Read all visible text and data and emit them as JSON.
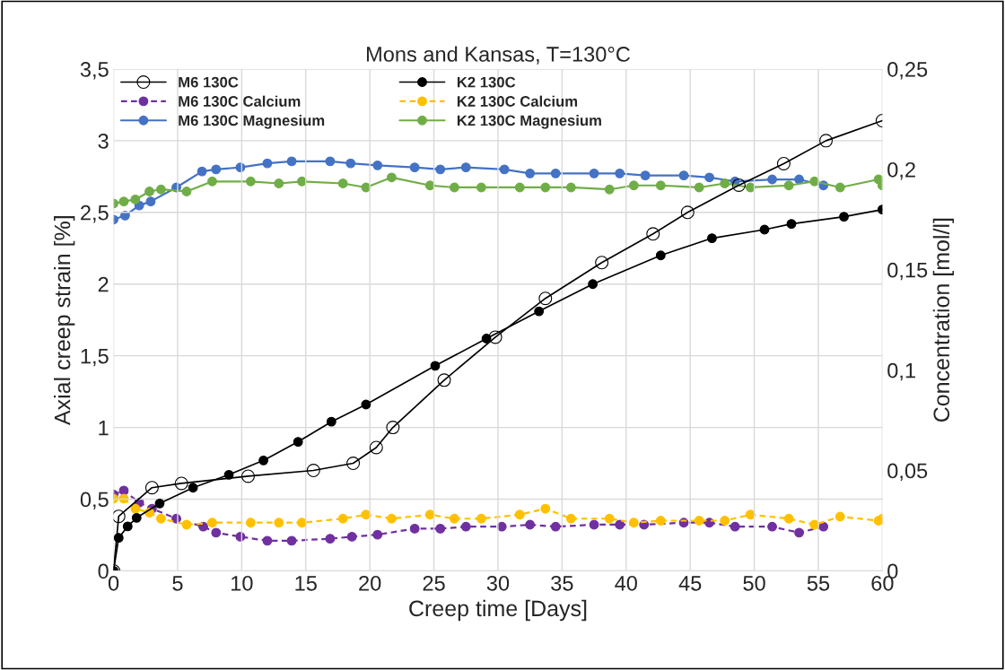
{
  "chart_data": {
    "type": "line",
    "title": "Mons and Kansas, T=130°C",
    "xlabel": "Creep time [Days]",
    "ylabel": "Axial creep strain [%]",
    "y2label": "Concentration [mol/l]",
    "xlim": [
      0,
      60
    ],
    "xticks": [
      0,
      5,
      10,
      15,
      20,
      25,
      30,
      35,
      40,
      45,
      50,
      55,
      60
    ],
    "ylim": [
      0,
      3.5
    ],
    "yticks": [
      0,
      {
        "value": 0.5,
        "label": "0,5"
      },
      1,
      {
        "value": 1.5,
        "label": "1,5"
      },
      2,
      {
        "value": 2.5,
        "label": "2,5"
      },
      3,
      {
        "value": 3.5,
        "label": "3,5"
      }
    ],
    "y2lim": [
      0,
      0.25
    ],
    "y2ticks": [
      0,
      {
        "value": 0.05,
        "label": "0,05"
      },
      {
        "value": 0.1,
        "label": "0,1"
      },
      {
        "value": 0.15,
        "label": "0,15"
      },
      {
        "value": 0.2,
        "label": "0,2"
      },
      {
        "value": 0.25,
        "label": "0,25"
      }
    ],
    "grid": true,
    "legend": "top left",
    "series": [
      {
        "name": "M6 130C",
        "color": "#000000",
        "marker": "circle-open",
        "line_style": "solid",
        "x": [
          0,
          0.4,
          3.0,
          5.3,
          10.5,
          15.6,
          18.7,
          20.5,
          21.8,
          25.8,
          29.8,
          33.7,
          38.1,
          42.1,
          44.8,
          48.8,
          52.3,
          55.6,
          60
        ],
        "values": [
          0,
          0.38,
          0.58,
          0.61,
          0.66,
          0.7,
          0.75,
          0.86,
          1.0,
          1.33,
          1.63,
          1.9,
          2.15,
          2.35,
          2.5,
          2.69,
          2.84,
          3.0,
          3.14
        ]
      },
      {
        "name": "K2 130C",
        "color": "#000000",
        "marker": "circle",
        "line_style": "solid",
        "x": [
          0,
          0.4,
          1.1,
          1.8,
          3.6,
          6.2,
          9.0,
          11.7,
          14.4,
          17.0,
          19.7,
          25.1,
          29.1,
          33.2,
          37.4,
          42.7,
          46.7,
          50.8,
          52.9,
          57.0,
          60
        ],
        "values": [
          0,
          0.23,
          0.31,
          0.37,
          0.47,
          0.58,
          0.67,
          0.77,
          0.9,
          1.04,
          1.16,
          1.43,
          1.62,
          1.81,
          2.0,
          2.2,
          2.32,
          2.38,
          2.42,
          2.47,
          2.52
        ]
      },
      {
        "name": "M6 130C Calcium",
        "color": "#7030a0",
        "axis": "y2",
        "marker": "circle",
        "line_style": "dashed",
        "x": [
          0,
          0.8,
          2.0,
          3.0,
          4.9,
          7.0,
          8.0,
          9.9,
          12.0,
          13.9,
          16.9,
          18.6,
          20.6,
          23.5,
          25.5,
          27.5,
          30.3,
          32.5,
          34.5,
          37.5,
          39.5,
          41.4,
          44.5,
          46.5,
          48.5,
          51.4,
          53.5,
          55.4
        ],
        "values": [
          0.038,
          0.04,
          0.034,
          0.031,
          0.026,
          0.022,
          0.019,
          0.017,
          0.015,
          0.015,
          0.016,
          0.017,
          0.018,
          0.021,
          0.021,
          0.022,
          0.022,
          0.023,
          0.022,
          0.023,
          0.023,
          0.023,
          0.024,
          0.024,
          0.022,
          0.022,
          0.019,
          0.022
        ]
      },
      {
        "name": "K2 130C Calcium",
        "color": "#ffc000",
        "axis": "y2",
        "marker": "circle",
        "line_style": "dashed",
        "x": [
          0,
          0.8,
          1.7,
          2.8,
          3.7,
          5.7,
          7.7,
          10.7,
          12.9,
          14.7,
          17.9,
          19.7,
          21.7,
          24.7,
          26.6,
          28.7,
          31.7,
          33.7,
          35.7,
          38.7,
          40.6,
          42.7,
          45.7,
          47.7,
          49.7,
          52.7,
          54.7,
          56.7,
          59.7,
          60
        ],
        "values": [
          0.036,
          0.036,
          0.031,
          0.029,
          0.026,
          0.023,
          0.024,
          0.024,
          0.024,
          0.024,
          0.026,
          0.028,
          0.026,
          0.028,
          0.026,
          0.026,
          0.028,
          0.031,
          0.026,
          0.026,
          0.024,
          0.025,
          0.025,
          0.025,
          0.028,
          0.026,
          0.023,
          0.027,
          0.025,
          0.026
        ]
      },
      {
        "name": "M6 130C Magnesium",
        "color": "#4472c4",
        "axis": "y2",
        "marker": "circle",
        "line_style": "solid",
        "x": [
          0,
          0.9,
          2.0,
          2.9,
          4.9,
          6.9,
          8.0,
          9.9,
          12.0,
          13.9,
          16.9,
          18.5,
          20.6,
          23.5,
          25.5,
          27.5,
          30.5,
          32.5,
          34.5,
          37.5,
          39.5,
          41.5,
          44.5,
          46.5,
          48.5,
          51.4,
          53.5,
          55.4
        ],
        "values": [
          0.175,
          0.177,
          0.182,
          0.184,
          0.191,
          0.199,
          0.2,
          0.201,
          0.203,
          0.204,
          0.204,
          0.203,
          0.202,
          0.201,
          0.2,
          0.201,
          0.2,
          0.198,
          0.198,
          0.198,
          0.198,
          0.197,
          0.197,
          0.196,
          0.194,
          0.195,
          0.195,
          0.192
        ]
      },
      {
        "name": "K2 130C Magnesium",
        "color": "#70ad47",
        "axis": "y2",
        "marker": "circle",
        "line_style": "solid",
        "x": [
          0,
          0.8,
          1.7,
          2.8,
          3.7,
          5.7,
          7.7,
          10.7,
          12.9,
          14.7,
          17.9,
          19.7,
          21.7,
          24.7,
          26.6,
          28.7,
          31.7,
          33.7,
          35.7,
          38.7,
          40.6,
          42.7,
          45.7,
          47.7,
          49.7,
          52.7,
          54.7,
          56.7,
          59.7,
          60
        ],
        "values": [
          0.183,
          0.184,
          0.185,
          0.189,
          0.19,
          0.189,
          0.194,
          0.194,
          0.193,
          0.194,
          0.193,
          0.191,
          0.196,
          0.192,
          0.191,
          0.191,
          0.191,
          0.191,
          0.191,
          0.19,
          0.192,
          0.192,
          0.191,
          0.193,
          0.191,
          0.192,
          0.194,
          0.191,
          0.195,
          0.192
        ]
      }
    ]
  }
}
